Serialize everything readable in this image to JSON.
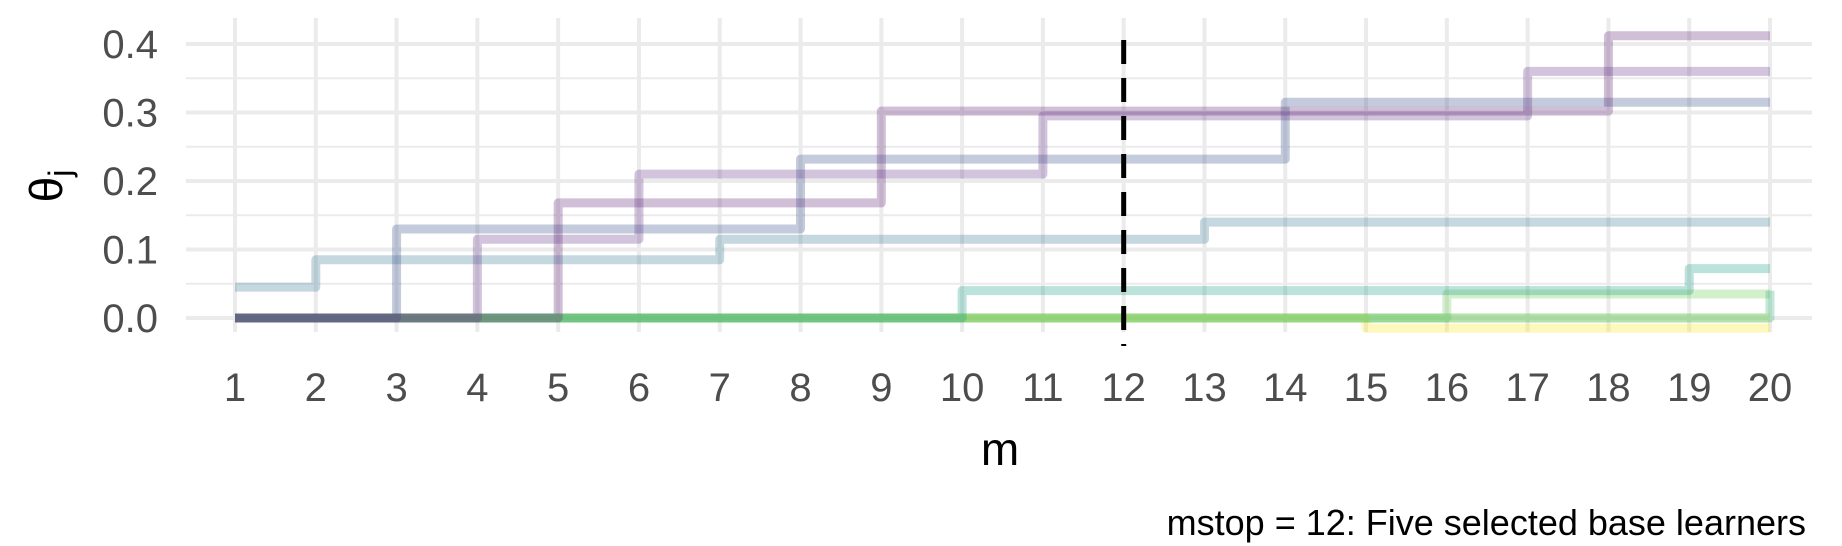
{
  "chart_data": {
    "type": "line",
    "xlabel": "m",
    "ylabel_base": "θ",
    "ylabel_sub": "j",
    "caption": "mstop = 12: Five selected base learners",
    "x": [
      1,
      2,
      3,
      4,
      5,
      6,
      7,
      8,
      9,
      10,
      11,
      12,
      13,
      14,
      15,
      16,
      17,
      18,
      19,
      20
    ],
    "xlim": [
      1,
      20
    ],
    "ylim": [
      0,
      0.4
    ],
    "yticks": [
      0.0,
      0.1,
      0.2,
      0.3,
      0.4
    ],
    "ytick_labels": [
      "0.0",
      "0.1",
      "0.2",
      "0.3",
      "0.4"
    ],
    "grid": true,
    "legend": "none",
    "line_style": "step",
    "vline": {
      "x": 12,
      "style": "dashed",
      "color": "#000000"
    },
    "series": [
      {
        "color": "#fde725",
        "values": [
          0,
          0,
          0,
          0,
          0,
          0,
          0,
          0,
          0,
          0,
          0,
          0,
          0,
          0,
          -0.015,
          -0.015,
          -0.015,
          -0.015,
          -0.015,
          -0.015
        ]
      },
      {
        "color": "#b5de2b",
        "values": [
          0,
          0,
          0,
          0,
          0,
          0,
          0,
          0,
          0,
          0,
          0,
          0,
          0,
          0,
          0,
          0,
          0,
          0,
          0,
          0
        ]
      },
      {
        "color": "#6ece58",
        "values": [
          0,
          0,
          0,
          0,
          0,
          0,
          0,
          0,
          0,
          0,
          0,
          0,
          0,
          0,
          0,
          0.035,
          0.035,
          0.035,
          0.035,
          0.035
        ]
      },
      {
        "color": "#35b779",
        "values": [
          0,
          0,
          0,
          0,
          0,
          0,
          0,
          0,
          0,
          0,
          0,
          0,
          0,
          0,
          0,
          0,
          0,
          0,
          0,
          0.04
        ]
      },
      {
        "color": "#1f9e89",
        "values": [
          0,
          0,
          0,
          0,
          0,
          0,
          0,
          0,
          0,
          0.04,
          0.04,
          0.04,
          0.04,
          0.04,
          0.04,
          0.04,
          0.04,
          0.04,
          0.072,
          0.072
        ]
      },
      {
        "color": "#3e7f99",
        "values": [
          0.045,
          0.085,
          0.085,
          0.085,
          0.085,
          0.085,
          0.115,
          0.115,
          0.115,
          0.115,
          0.115,
          0.115,
          0.14,
          0.14,
          0.14,
          0.14,
          0.14,
          0.14,
          0.14,
          0.14
        ]
      },
      {
        "color": "#3b528b",
        "values": [
          0,
          0,
          0.13,
          0.13,
          0.13,
          0.13,
          0.13,
          0.232,
          0.232,
          0.232,
          0.232,
          0.232,
          0.232,
          0.315,
          0.315,
          0.315,
          0.315,
          0.315,
          0.315,
          0.315
        ]
      },
      {
        "color": "#6a3d8f",
        "values": [
          0,
          0,
          0,
          0.115,
          0.115,
          0.21,
          0.21,
          0.21,
          0.21,
          0.21,
          0.295,
          0.295,
          0.295,
          0.295,
          0.295,
          0.295,
          0.36,
          0.36,
          0.36,
          0.36
        ]
      },
      {
        "color": "#652a7a",
        "values": [
          0,
          0,
          0,
          0,
          0.168,
          0.168,
          0.168,
          0.168,
          0.302,
          0.302,
          0.302,
          0.302,
          0.302,
          0.302,
          0.302,
          0.302,
          0.302,
          0.412,
          0.412,
          0.412
        ]
      }
    ]
  }
}
